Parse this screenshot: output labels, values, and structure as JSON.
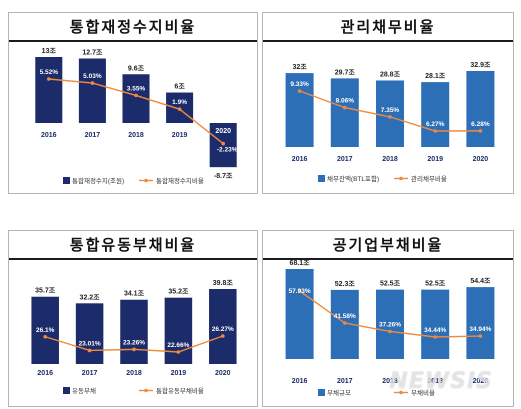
{
  "watermark": "NEWSIS",
  "colors": {
    "bar_navy": "#1c2c6b",
    "bar_blue": "#2c6fb7",
    "line": "#f08a3c"
  },
  "chart_data": [
    {
      "type": "bar",
      "title": "통합재정수지비율",
      "categories": [
        "2016",
        "2017",
        "2018",
        "2019",
        "2020"
      ],
      "bar_series": {
        "name": "통합재정수지(조원)",
        "values": [
          13,
          12.7,
          9.6,
          6,
          -8.7
        ],
        "labels": [
          "13",
          "12.7",
          "9.6",
          "6",
          "-8.7"
        ],
        "unit": "조"
      },
      "line_series": {
        "name": "통합재정수지비율",
        "values": [
          5.52,
          5.03,
          3.55,
          1.9,
          -2.23
        ],
        "labels": [
          "5.52%",
          "5.03%",
          "3.55%",
          "1.9%",
          "-2.23%"
        ]
      },
      "legend": "bottom"
    },
    {
      "type": "bar",
      "title": "관리채무비율",
      "categories": [
        "2016",
        "2017",
        "2018",
        "2019",
        "2020"
      ],
      "bar_series": {
        "name": "채무잔액(BTL포함)",
        "values": [
          32,
          29.7,
          28.8,
          28.1,
          32.9
        ],
        "labels": [
          "32조",
          "29.7조",
          "28.8조",
          "28.1조",
          "32.9조"
        ]
      },
      "line_series": {
        "name": "관리채무비율",
        "values": [
          9.33,
          8.06,
          7.35,
          6.27,
          6.28
        ],
        "labels": [
          "9.33%",
          "8.06%",
          "7.35%",
          "6.27%",
          "6.28%"
        ]
      },
      "legend": "bottom"
    },
    {
      "type": "bar",
      "title": "통합유동부채비율",
      "categories": [
        "2016",
        "2017",
        "2018",
        "2019",
        "2020"
      ],
      "bar_series": {
        "name": "유동부채",
        "values": [
          35.7,
          32.2,
          34.1,
          35.2,
          39.8
        ],
        "labels": [
          "35.7조",
          "32.2조",
          "34.1조",
          "35.2조",
          "39.8조"
        ]
      },
      "line_series": {
        "name": "통합유동부채비율",
        "values": [
          26.1,
          23.01,
          23.26,
          22.66,
          26.27
        ],
        "labels": [
          "26.1%",
          "23.01%",
          "23.26%",
          "22.66%",
          "26.27%"
        ]
      },
      "legend": "bottom"
    },
    {
      "type": "bar",
      "title": "공기업부채비율",
      "categories": [
        "2016",
        "2017",
        "2018",
        "2019",
        "2020"
      ],
      "bar_series": {
        "name": "부채규모",
        "values": [
          68.1,
          52.3,
          52.5,
          52.5,
          54.4
        ],
        "labels": [
          "68.1조",
          "52.3조",
          "52.5조",
          "52.5조",
          "54.4조"
        ]
      },
      "line_series": {
        "name": "부채비율",
        "values": [
          57.93,
          41.58,
          37.26,
          34.44,
          34.94
        ],
        "labels": [
          "57.93%",
          "41.58%",
          "37.26%",
          "34.44%",
          "34.94%"
        ]
      },
      "legend": "bottom"
    }
  ]
}
